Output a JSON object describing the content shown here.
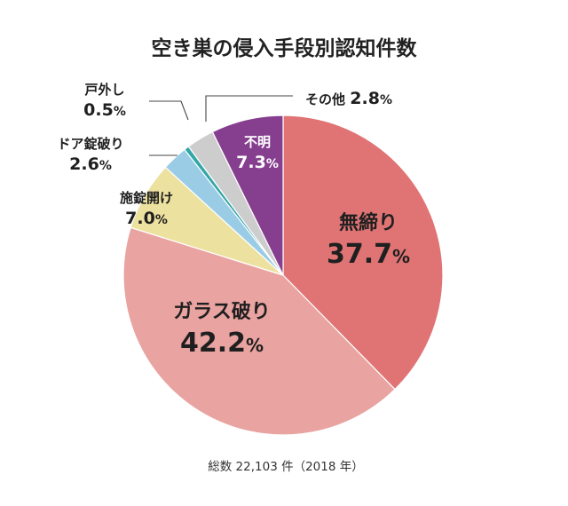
{
  "chart_data": {
    "type": "pie",
    "title": "空き巣の侵入手段別認知件数",
    "footnote": "総数 22,103 件（2018 年）",
    "slices": [
      {
        "label": "無締り",
        "value": 37.7,
        "display": "37.7",
        "color": "#e07474"
      },
      {
        "label": "ガラス破り",
        "value": 42.2,
        "display": "42.2",
        "color": "#e9a3a1"
      },
      {
        "label": "施錠開け",
        "value": 7.0,
        "display": "7.0",
        "color": "#ede19f"
      },
      {
        "label": "ドア錠破り",
        "value": 2.6,
        "display": "2.6",
        "color": "#9bcce6"
      },
      {
        "label": "戸外し",
        "value": 0.5,
        "display": "0.5",
        "color": "#33a6a8"
      },
      {
        "label": "その他",
        "value": 2.8,
        "display": "2.8",
        "color": "#cdcdcd"
      },
      {
        "label": "不明",
        "value": 7.3,
        "display": "7.3",
        "color": "#863f8f"
      }
    ],
    "unit": "%",
    "direction": "clockwise from top"
  }
}
